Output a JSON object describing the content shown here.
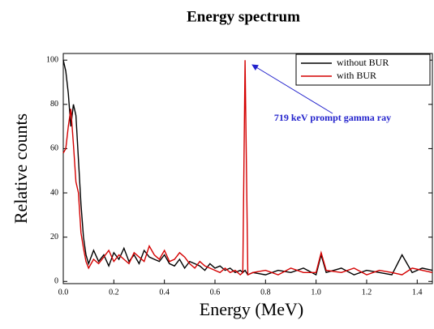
{
  "chart_data": {
    "type": "line",
    "title": "Energy spectrum",
    "x_label": "Energy (MeV)",
    "y_label": "Relative counts",
    "annotation": "719 keV prompt gamma ray",
    "x": [
      0,
      0.01,
      0.02,
      0.03,
      0.04,
      0.05,
      0.06,
      0.07,
      0.08,
      0.09,
      0.1,
      0.12,
      0.14,
      0.16,
      0.18,
      0.2,
      0.22,
      0.24,
      0.26,
      0.28,
      0.3,
      0.32,
      0.34,
      0.36,
      0.38,
      0.4,
      0.42,
      0.44,
      0.46,
      0.48,
      0.5,
      0.52,
      0.54,
      0.56,
      0.58,
      0.6,
      0.62,
      0.64,
      0.66,
      0.68,
      0.7,
      0.71,
      0.719,
      0.73,
      0.75,
      0.8,
      0.85,
      0.9,
      0.95,
      1.0,
      1.02,
      1.04,
      1.1,
      1.15,
      1.2,
      1.25,
      1.3,
      1.34,
      1.38,
      1.42,
      1.46
    ],
    "series": [
      {
        "name": "without BUR",
        "color": "#000000",
        "values": [
          100,
          95,
          85,
          70,
          80,
          75,
          55,
          35,
          20,
          12,
          8,
          14,
          9,
          12,
          7,
          13,
          10,
          15,
          9,
          12,
          8,
          14,
          11,
          10,
          9,
          12,
          8,
          7,
          10,
          6,
          9,
          8,
          7,
          5,
          8,
          6,
          7,
          5,
          6,
          4,
          5,
          4,
          5,
          3,
          4,
          3,
          5,
          4,
          6,
          3,
          12,
          4,
          6,
          3,
          5,
          4,
          3,
          12,
          4,
          6,
          5
        ]
      },
      {
        "name": "with BUR",
        "color": "#d40000",
        "values": [
          58,
          60,
          70,
          78,
          62,
          45,
          40,
          22,
          15,
          9,
          6,
          10,
          8,
          11,
          14,
          9,
          12,
          10,
          8,
          13,
          11,
          9,
          16,
          12,
          10,
          14,
          9,
          10,
          13,
          11,
          8,
          6,
          9,
          7,
          6,
          5,
          4,
          6,
          4,
          5,
          3,
          4,
          100,
          3,
          4,
          5,
          3,
          6,
          4,
          4,
          13,
          5,
          4,
          6,
          3,
          5,
          4,
          3,
          6,
          5,
          4
        ]
      }
    ],
    "xlim": [
      0,
      1.46
    ],
    "ylim": [
      -1,
      103
    ],
    "xticks": [
      {
        "value": 0,
        "label": "0.0"
      },
      0.2,
      0.4,
      0.6,
      0.8,
      {
        "value": 1,
        "label": "1.0"
      },
      1.2,
      1.4
    ],
    "yticks": [
      0,
      20,
      40,
      60,
      80,
      100
    ],
    "legend": "top-right"
  }
}
